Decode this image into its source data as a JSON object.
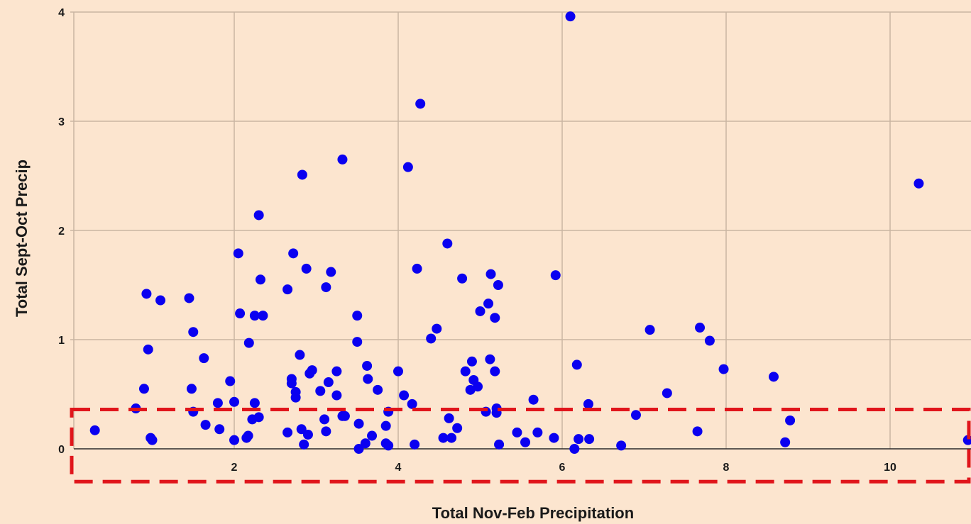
{
  "colors": {
    "background": "#fce5cf",
    "grid": "#c9b5a2",
    "axis": "#2a2a2a",
    "point": "#0a00f0",
    "highlight": "#e0151b"
  },
  "chart_data": {
    "type": "scatter",
    "title": "",
    "xlabel": "Total Nov-Feb Precipitation",
    "ylabel": "Total Sept-Oct Precip",
    "xlim": [
      0,
      11
    ],
    "ylim": [
      0,
      4
    ],
    "xticks": [
      2,
      4,
      6,
      8,
      10
    ],
    "yticks": [
      0,
      1,
      2,
      3,
      4
    ],
    "grid": true,
    "highlight_region": {
      "style": "dashed",
      "x": [
        0,
        11
      ],
      "y": [
        -0.3,
        0.36
      ]
    },
    "points": [
      [
        0.3,
        0.17
      ],
      [
        0.8,
        0.37
      ],
      [
        0.9,
        0.55
      ],
      [
        0.93,
        1.42
      ],
      [
        0.95,
        0.91
      ],
      [
        0.98,
        0.1
      ],
      [
        1.0,
        0.08
      ],
      [
        1.1,
        1.36
      ],
      [
        1.45,
        1.38
      ],
      [
        1.48,
        0.55
      ],
      [
        1.5,
        1.07
      ],
      [
        1.5,
        0.34
      ],
      [
        1.63,
        0.83
      ],
      [
        1.65,
        0.22
      ],
      [
        1.8,
        0.42
      ],
      [
        1.82,
        0.18
      ],
      [
        1.95,
        0.62
      ],
      [
        2.0,
        0.43
      ],
      [
        2.0,
        0.08
      ],
      [
        2.05,
        1.79
      ],
      [
        2.07,
        1.24
      ],
      [
        2.15,
        0.1
      ],
      [
        2.17,
        0.12
      ],
      [
        2.18,
        0.97
      ],
      [
        2.22,
        0.27
      ],
      [
        2.25,
        1.22
      ],
      [
        2.25,
        0.42
      ],
      [
        2.3,
        2.14
      ],
      [
        2.3,
        0.29
      ],
      [
        2.32,
        1.55
      ],
      [
        2.35,
        1.22
      ],
      [
        2.65,
        1.46
      ],
      [
        2.65,
        0.15
      ],
      [
        2.7,
        0.64
      ],
      [
        2.7,
        0.6
      ],
      [
        2.72,
        1.79
      ],
      [
        2.75,
        0.52
      ],
      [
        2.75,
        0.47
      ],
      [
        2.8,
        0.86
      ],
      [
        2.82,
        0.18
      ],
      [
        2.85,
        0.04
      ],
      [
        2.83,
        2.51
      ],
      [
        2.88,
        1.65
      ],
      [
        2.9,
        0.13
      ],
      [
        2.92,
        0.69
      ],
      [
        2.95,
        0.72
      ],
      [
        3.05,
        0.53
      ],
      [
        3.1,
        0.27
      ],
      [
        3.12,
        1.48
      ],
      [
        3.12,
        0.16
      ],
      [
        3.15,
        0.61
      ],
      [
        3.18,
        1.62
      ],
      [
        3.25,
        0.71
      ],
      [
        3.25,
        0.49
      ],
      [
        3.32,
        0.3
      ],
      [
        3.35,
        0.3
      ],
      [
        3.32,
        2.65
      ],
      [
        3.5,
        1.22
      ],
      [
        3.5,
        0.98
      ],
      [
        3.52,
        0.23
      ],
      [
        3.52,
        0.0
      ],
      [
        3.6,
        0.05
      ],
      [
        3.62,
        0.76
      ],
      [
        3.63,
        0.64
      ],
      [
        3.68,
        0.12
      ],
      [
        3.75,
        0.54
      ],
      [
        3.85,
        0.05
      ],
      [
        3.85,
        0.21
      ],
      [
        3.88,
        0.34
      ],
      [
        3.88,
        0.03
      ],
      [
        4.0,
        0.71
      ],
      [
        4.07,
        0.49
      ],
      [
        4.12,
        2.58
      ],
      [
        4.17,
        0.41
      ],
      [
        4.2,
        0.04
      ],
      [
        4.23,
        1.65
      ],
      [
        4.27,
        3.16
      ],
      [
        4.4,
        1.01
      ],
      [
        4.47,
        1.1
      ],
      [
        4.55,
        0.1
      ],
      [
        4.6,
        1.88
      ],
      [
        4.62,
        0.28
      ],
      [
        4.65,
        0.1
      ],
      [
        4.72,
        0.19
      ],
      [
        4.78,
        1.56
      ],
      [
        4.82,
        0.71
      ],
      [
        4.88,
        0.54
      ],
      [
        4.9,
        0.8
      ],
      [
        4.92,
        0.63
      ],
      [
        4.97,
        0.57
      ],
      [
        5.0,
        1.26
      ],
      [
        5.07,
        0.34
      ],
      [
        5.1,
        1.33
      ],
      [
        5.12,
        0.82
      ],
      [
        5.13,
        1.6
      ],
      [
        5.18,
        1.2
      ],
      [
        5.18,
        0.71
      ],
      [
        5.2,
        0.37
      ],
      [
        5.2,
        0.33
      ],
      [
        5.22,
        1.5
      ],
      [
        5.23,
        0.04
      ],
      [
        5.45,
        0.15
      ],
      [
        5.55,
        0.06
      ],
      [
        5.65,
        0.45
      ],
      [
        5.7,
        0.15
      ],
      [
        5.9,
        0.1
      ],
      [
        5.92,
        1.59
      ],
      [
        6.1,
        3.96
      ],
      [
        6.15,
        0.0
      ],
      [
        6.18,
        0.77
      ],
      [
        6.2,
        0.09
      ],
      [
        6.32,
        0.41
      ],
      [
        6.33,
        0.09
      ],
      [
        6.72,
        0.03
      ],
      [
        6.9,
        0.31
      ],
      [
        7.07,
        1.09
      ],
      [
        7.28,
        0.51
      ],
      [
        7.65,
        0.16
      ],
      [
        7.68,
        1.11
      ],
      [
        7.8,
        0.99
      ],
      [
        7.97,
        0.73
      ],
      [
        8.58,
        0.66
      ],
      [
        8.72,
        0.06
      ],
      [
        8.78,
        0.26
      ],
      [
        10.35,
        2.43
      ],
      [
        10.95,
        0.08
      ]
    ]
  }
}
